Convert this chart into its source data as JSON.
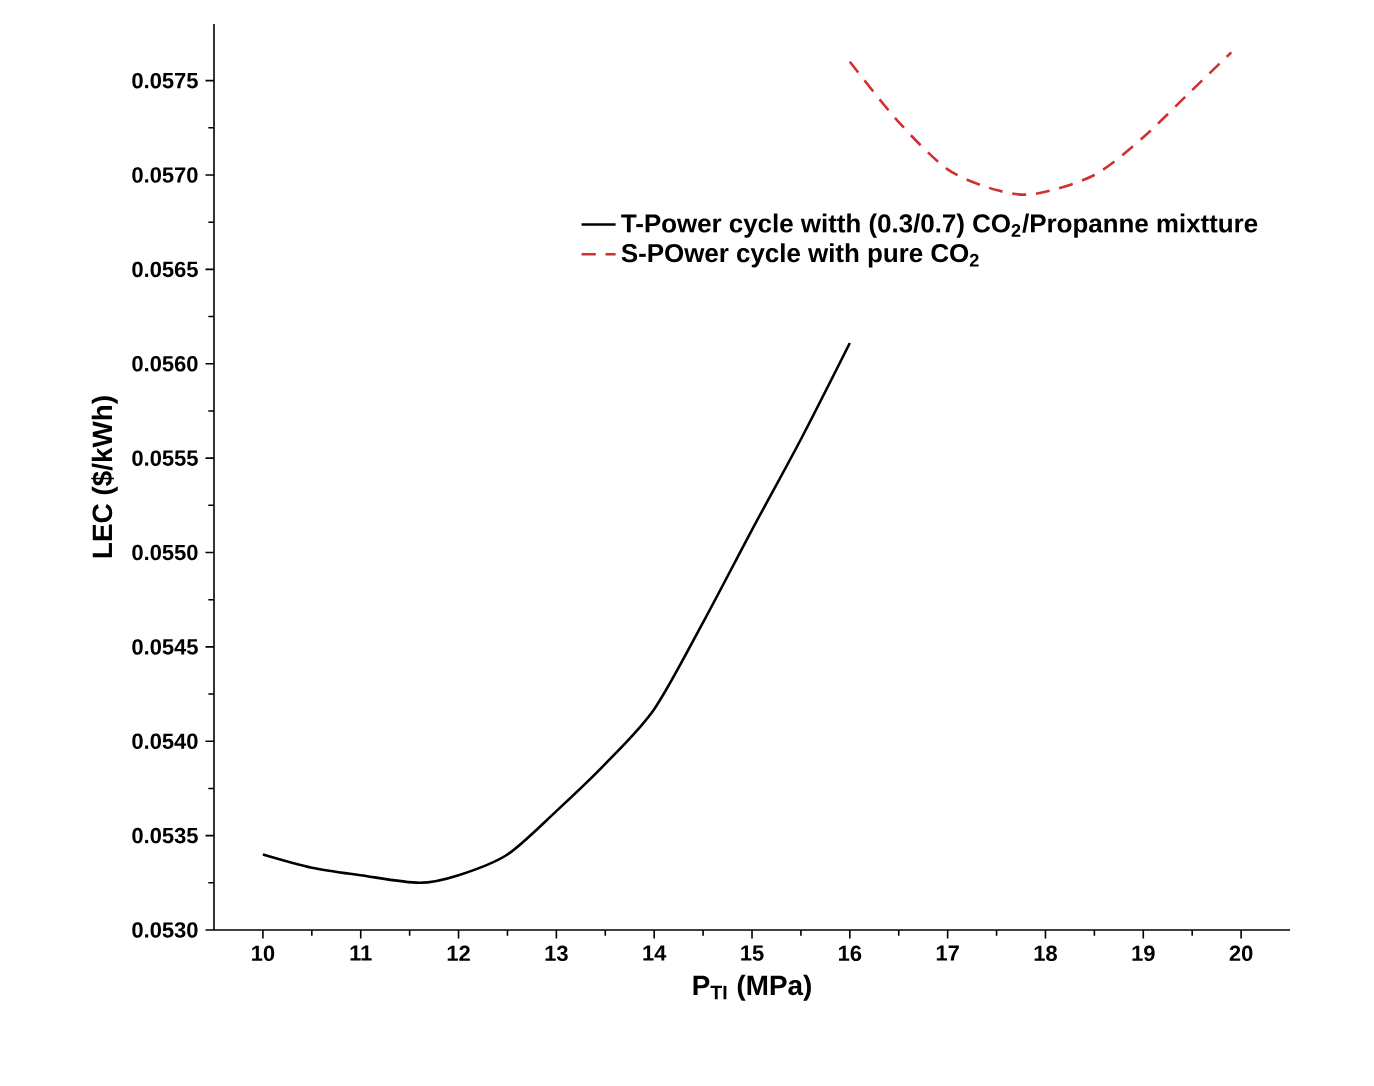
{
  "chart_data": {
    "type": "line",
    "xlabel": "P$_{TI}$ (MPa)",
    "ylabel": "LEC ($/kWh)",
    "xlim": [
      9.5,
      20.5
    ],
    "ylim": [
      0.053,
      0.0578
    ],
    "xticks": [
      10,
      11,
      12,
      13,
      14,
      15,
      16,
      17,
      18,
      19,
      20
    ],
    "yticks": [
      {
        "value": 0.053,
        "label": "0.0530"
      },
      {
        "value": 0.0535,
        "label": "0.0535"
      },
      {
        "value": 0.054,
        "label": "0.0540"
      },
      {
        "value": 0.0545,
        "label": "0.0545"
      },
      {
        "value": 0.055,
        "label": "0.0550"
      },
      {
        "value": 0.0555,
        "label": "0.0555"
      },
      {
        "value": 0.056,
        "label": "0.0560"
      },
      {
        "value": 0.0565,
        "label": "0.0565"
      },
      {
        "value": 0.057,
        "label": "0.0570"
      },
      {
        "value": 0.0575,
        "label": "0.0575"
      }
    ],
    "legend": "top right",
    "grid": false,
    "series": [
      {
        "name": "T-Power cycle witth (0.3/0.7) CO$_{2}$/Propanne mixtture",
        "color": "#000000",
        "line_style": "solid",
        "x": [
          10,
          10.5,
          11,
          11.6,
          12,
          12.5,
          13,
          13.5,
          14,
          14.5,
          15,
          15.5,
          16
        ],
        "values": [
          0.0534,
          0.05333,
          0.05329,
          0.05325,
          0.05329,
          0.0534,
          0.05363,
          0.05388,
          0.05417,
          0.05463,
          0.05512,
          0.0556,
          0.05611
        ]
      },
      {
        "name": "S-POwer cycle with pure CO$_{2}$",
        "color": "#d03030",
        "line_style": "dashed",
        "x": [
          16,
          16.5,
          17,
          17.5,
          17.9,
          18.5,
          19,
          19.5,
          19.9
        ],
        "values": [
          0.0576,
          0.05728,
          0.05703,
          0.05692,
          0.0569,
          0.057,
          0.0572,
          0.05745,
          0.05765
        ]
      }
    ]
  }
}
